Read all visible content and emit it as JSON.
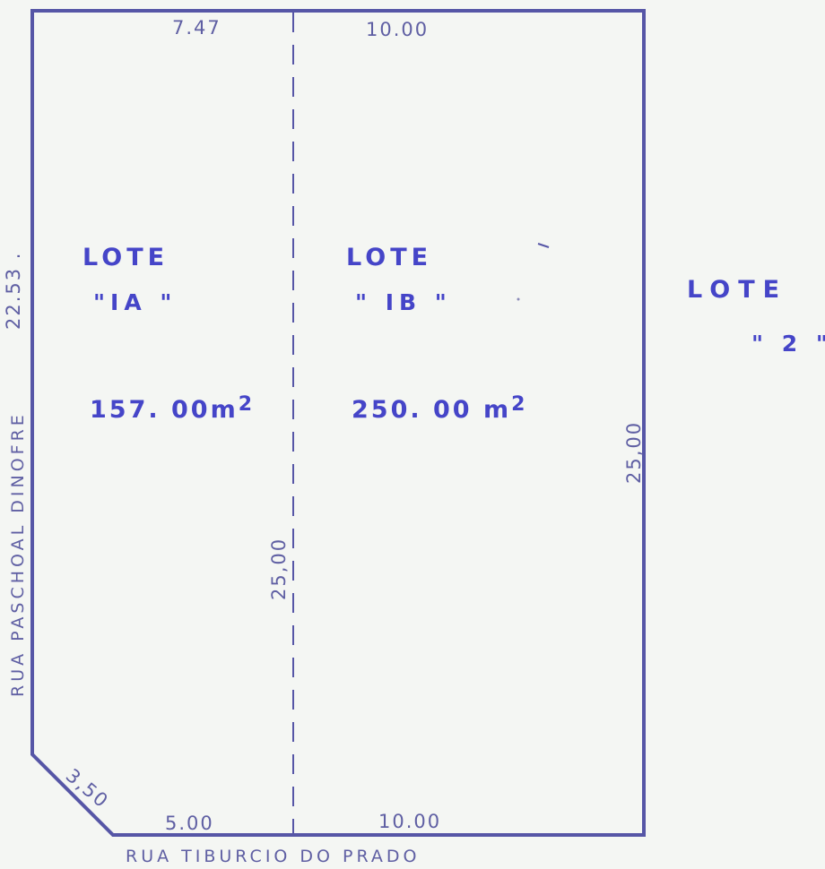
{
  "lots": [
    {
      "title": "LOTE",
      "id": "\"IA \"",
      "area": "157. 00m",
      "area_unit_sup": "2"
    },
    {
      "title": "LOTE",
      "id": "\" IB \"",
      "area": "250. 00 m",
      "area_unit_sup": "2"
    },
    {
      "title": "LOTE",
      "id": "\" 2 \""
    }
  ],
  "dimensions": {
    "top_left": "7.47",
    "top_right": "10.00",
    "bottom_left": "5.00",
    "bottom_right": "10.00",
    "chamfer": "3,50",
    "left_side": "22.53 .",
    "middle_divider": "25,00",
    "right_side": "25,00"
  },
  "streets": {
    "bottom": "RUA  TIBURCIO  DO  PRADO",
    "left": "RUA  PASCHOAL DINOFRE"
  },
  "colors": {
    "line": "#5656a6",
    "lot_text": "#4545c8",
    "dim_text": "#5f5fa3",
    "paper": "#f4f6f3"
  }
}
